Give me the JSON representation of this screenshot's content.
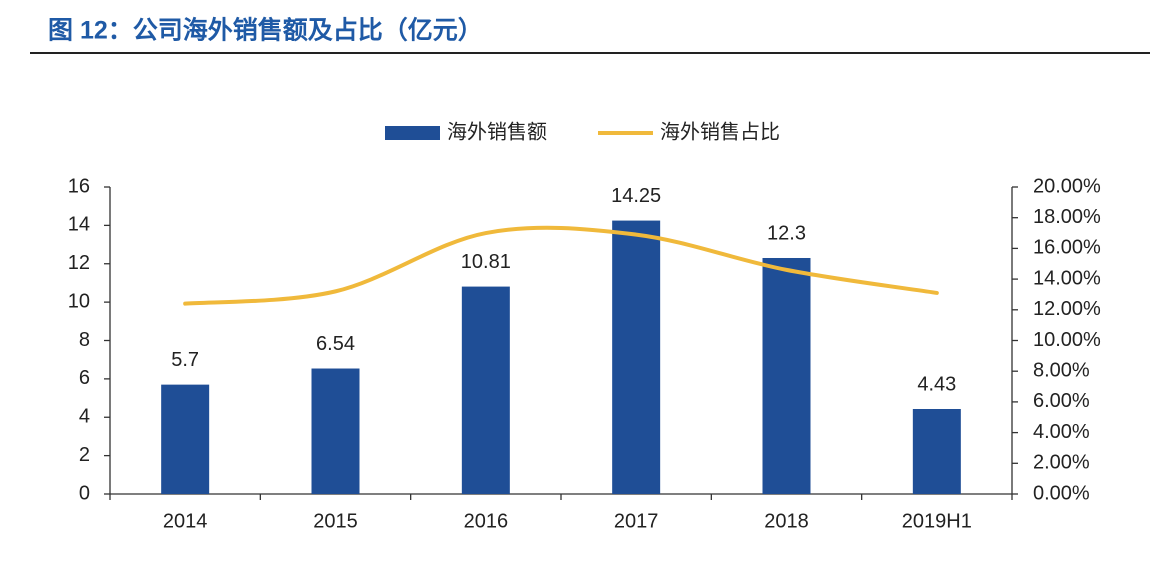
{
  "chart_data": {
    "type": "bar",
    "title": "图 12：公司海外销售额及占比（亿元）",
    "categories": [
      "2014",
      "2015",
      "2016",
      "2017",
      "2018",
      "2019H1"
    ],
    "series": [
      {
        "name": "海外销售额",
        "type": "bar",
        "color": "#1f4e96",
        "values": [
          5.7,
          6.54,
          10.81,
          14.25,
          12.3,
          4.43
        ],
        "data_labels": true
      },
      {
        "name": "海外销售占比",
        "type": "line",
        "axis": "y2",
        "color": "#f0b93b",
        "smooth": true,
        "values": [
          12.4,
          13.2,
          17.0,
          16.9,
          14.6,
          13.1
        ]
      }
    ],
    "ylim": [
      0,
      16
    ],
    "yticks": [
      0,
      2,
      4,
      6,
      8,
      10,
      12,
      14,
      16
    ],
    "y2lim": [
      0,
      20
    ],
    "y2ticks": [
      {
        "value": 0,
        "label": "0.00%"
      },
      {
        "value": 2,
        "label": "2.00%"
      },
      {
        "value": 4,
        "label": "4.00%"
      },
      {
        "value": 6,
        "label": "6.00%"
      },
      {
        "value": 8,
        "label": "8.00%"
      },
      {
        "value": 10,
        "label": "10.00%"
      },
      {
        "value": 12,
        "label": "12.00%"
      },
      {
        "value": 14,
        "label": "14.00%"
      },
      {
        "value": 16,
        "label": "16.00%"
      },
      {
        "value": 18,
        "label": "18.00%"
      },
      {
        "value": 20,
        "label": "20.00%"
      }
    ],
    "legend": "top"
  }
}
